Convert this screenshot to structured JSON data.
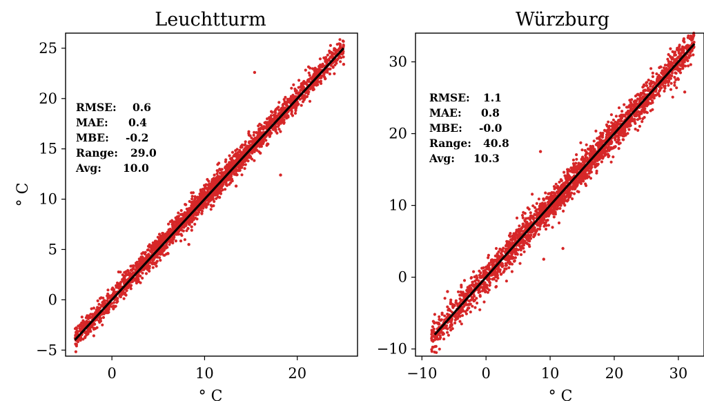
{
  "chart_data": [
    {
      "type": "scatter",
      "title": "Leuchtturm",
      "xlabel": "° C",
      "ylabel": "° C",
      "xlim": [
        -5,
        26.5
      ],
      "ylim": [
        -5.6,
        26.5
      ],
      "xticks": [
        0,
        10,
        20
      ],
      "yticks": [
        -5,
        0,
        5,
        10,
        15,
        20,
        25
      ],
      "xtick_labels": [
        "0",
        "10",
        "20"
      ],
      "ytick_labels": [
        "−5",
        "0",
        "5",
        "10",
        "15",
        "20",
        "25"
      ],
      "grid": false,
      "point_color": "#d62728",
      "line_color": "#000000",
      "fit_line": {
        "x": [
          -4,
          25
        ],
        "y": [
          -4,
          25
        ]
      },
      "stats": [
        {
          "label": "RMSE:",
          "value": "0.6"
        },
        {
          "label": "MAE:",
          "value": "0.4"
        },
        {
          "label": "MBE:",
          "value": "-0.2"
        },
        {
          "label": "Range:",
          "value": "29.0"
        },
        {
          "label": "Avg:",
          "value": "10.0"
        }
      ],
      "scatter_cloud": {
        "x_min": -4,
        "x_max": 25,
        "center_offset": 0.1,
        "spread": 0.6
      },
      "outliers": [
        {
          "x": 15.4,
          "y": 22.6
        },
        {
          "x": 18.2,
          "y": 12.4
        },
        {
          "x": 25.0,
          "y": 23.4
        },
        {
          "x": 13.4,
          "y": 11.3
        },
        {
          "x": 8.3,
          "y": 5.5
        }
      ]
    },
    {
      "type": "scatter",
      "title": "Würzburg",
      "xlabel": "° C",
      "ylabel": "",
      "xlim": [
        -11,
        34
      ],
      "ylim": [
        -11,
        34
      ],
      "xticks": [
        -10,
        0,
        10,
        20,
        30
      ],
      "yticks": [
        -10,
        0,
        10,
        20,
        30
      ],
      "xtick_labels": [
        "−10",
        "0",
        "10",
        "20",
        "30"
      ],
      "ytick_labels": [
        "−10",
        "0",
        "10",
        "20",
        "30"
      ],
      "grid": false,
      "point_color": "#d62728",
      "line_color": "#000000",
      "fit_line": {
        "x": [
          -8,
          32.5
        ],
        "y": [
          -8,
          32.5
        ]
      },
      "stats": [
        {
          "label": "RMSE:",
          "value": "1.1"
        },
        {
          "label": "MAE:",
          "value": "0.8"
        },
        {
          "label": "MBE:",
          "value": "-0.0"
        },
        {
          "label": "Range:",
          "value": "40.8"
        },
        {
          "label": "Avg:",
          "value": "10.3"
        }
      ],
      "scatter_cloud": {
        "x_min": -8.5,
        "x_max": 32.5,
        "center_offset": 0.0,
        "spread": 1.1
      },
      "outliers": [
        {
          "x": 8.5,
          "y": 17.5
        },
        {
          "x": 31.0,
          "y": 25.8
        },
        {
          "x": 9.0,
          "y": 2.5
        },
        {
          "x": -6.0,
          "y": -2.0
        },
        {
          "x": 12.0,
          "y": 4.0
        }
      ]
    }
  ]
}
